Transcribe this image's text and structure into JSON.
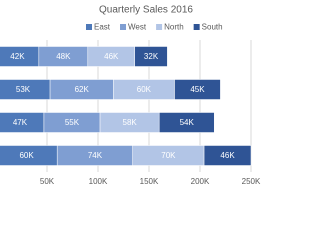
{
  "chart_data": {
    "type": "stacked-bar-horizontal",
    "title": "Quarterly Sales 2016",
    "series": [
      {
        "name": "East",
        "color": "#4e79b9",
        "values": [
          42000,
          53000,
          47000,
          60000
        ],
        "value_labels": [
          "42K",
          "53K",
          "47K",
          "60K"
        ]
      },
      {
        "name": "West",
        "color": "#7f9ed2",
        "values": [
          48000,
          62000,
          55000,
          74000
        ],
        "value_labels": [
          "48K",
          "62K",
          "55K",
          "74K"
        ]
      },
      {
        "name": "North",
        "color": "#b2c5e6",
        "values": [
          46000,
          60000,
          58000,
          70000
        ],
        "value_labels": [
          "46K",
          "60K",
          "58K",
          "70K"
        ]
      },
      {
        "name": "South",
        "color": "#2f5495",
        "values": [
          32000,
          45000,
          54000,
          46000
        ],
        "value_labels": [
          "32K",
          "45K",
          "54K",
          "46K"
        ]
      }
    ],
    "xlim": [
      0,
      250000
    ],
    "xticks": [
      {
        "value": 50000,
        "label": "50K"
      },
      {
        "value": 100000,
        "label": "100K"
      },
      {
        "value": 150000,
        "label": "150K"
      },
      {
        "value": 200000,
        "label": "200K"
      },
      {
        "value": 250000,
        "label": "250K"
      }
    ],
    "grid": true
  }
}
